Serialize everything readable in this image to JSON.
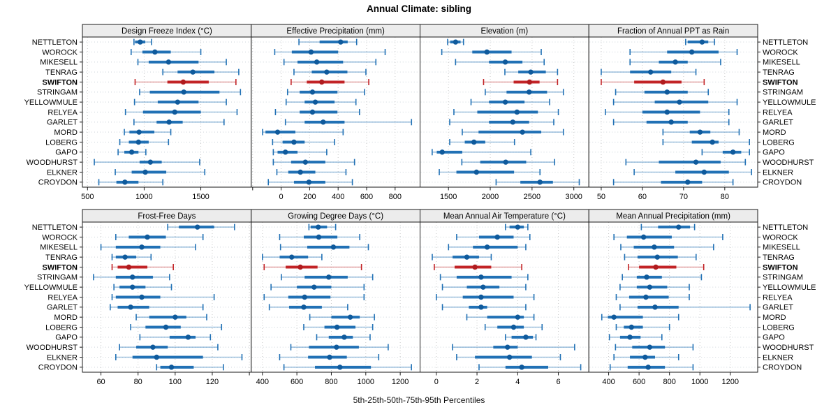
{
  "title": "Annual Climate: sibling",
  "footer": "5th-25th-50th-75th-95th Percentiles",
  "highlight_station": "SWIFTON",
  "stations": [
    "NETTLETON",
    "WOROCK",
    "MIKESELL",
    "TENRAG",
    "SWIFTON",
    "STRINGAM",
    "YELLOWMULE",
    "RELYEA",
    "GARLET",
    "MORD",
    "LOBERG",
    "GAPO",
    "WOODHURST",
    "ELKNER",
    "CROYDON"
  ],
  "colors": {
    "blue": "#2171b5",
    "blue_dot": "#0f5a9c",
    "red": "#c22326",
    "red_dot": "#b01b1e",
    "grid": "#c9c9c9",
    "row_grid": "#ccd4da",
    "strip_bg": "#ececec",
    "border": "#1a1a1a",
    "tick_text": "#1a1a1a"
  },
  "chart_data": [
    {
      "type": "dotplot",
      "title": "Design Freeze Index (°C)",
      "ticks": [
        500,
        1000,
        1500
      ],
      "extra_ticks": [],
      "xlim": [
        455,
        1945
      ],
      "percentiles": [
        5,
        25,
        50,
        75,
        95
      ],
      "values": [
        [
          910,
          920,
          965,
          1010,
          1065
        ],
        [
          885,
          985,
          1095,
          1235,
          1500
        ],
        [
          945,
          1040,
          1215,
          1480,
          1725
        ],
        [
          1165,
          1295,
          1430,
          1620,
          1835
        ],
        [
          920,
          1205,
          1345,
          1570,
          1810
        ],
        [
          960,
          1050,
          1350,
          1665,
          1850
        ],
        [
          915,
          1120,
          1295,
          1480,
          1725
        ],
        [
          835,
          990,
          1270,
          1500,
          1820
        ],
        [
          910,
          1110,
          1220,
          1340,
          1705
        ],
        [
          825,
          870,
          955,
          1090,
          1235
        ],
        [
          785,
          865,
          950,
          1040,
          1215
        ],
        [
          770,
          825,
          890,
          950,
          1015
        ],
        [
          560,
          960,
          1055,
          1155,
          1490
        ],
        [
          745,
          890,
          1010,
          1195,
          1535
        ],
        [
          600,
          755,
          830,
          950,
          1165
        ]
      ]
    },
    {
      "type": "dotplot",
      "title": "Effective Precipitation (mm)",
      "ticks": [
        0,
        200,
        400,
        600,
        800
      ],
      "extra_ticks": [
        -200
      ],
      "xlim": [
        -210,
        975
      ],
      "percentiles": [
        5,
        25,
        50,
        75,
        95
      ],
      "values": [
        [
          125,
          270,
          418,
          467,
          530
        ],
        [
          -45,
          75,
          210,
          400,
          730
        ],
        [
          20,
          115,
          250,
          435,
          665
        ],
        [
          90,
          215,
          320,
          465,
          595
        ],
        [
          70,
          180,
          285,
          445,
          615
        ],
        [
          45,
          130,
          220,
          395,
          585
        ],
        [
          35,
          165,
          240,
          375,
          525
        ],
        [
          -40,
          130,
          220,
          395,
          550
        ],
        [
          30,
          165,
          295,
          445,
          915
        ],
        [
          -130,
          -110,
          -25,
          100,
          435
        ],
        [
          -60,
          10,
          90,
          165,
          375
        ],
        [
          -55,
          -25,
          30,
          115,
          320
        ],
        [
          -55,
          70,
          170,
          310,
          515
        ],
        [
          -30,
          50,
          135,
          240,
          455
        ],
        [
          -90,
          90,
          195,
          310,
          500
        ]
      ]
    },
    {
      "type": "dotplot",
      "title": "Elevation (m)",
      "ticks": [
        1500,
        2000,
        2500,
        3000
      ],
      "extra_ticks": [],
      "xlim": [
        1160,
        3180
      ],
      "percentiles": [
        5,
        25,
        50,
        75,
        95
      ],
      "values": [
        [
          1490,
          1520,
          1585,
          1645,
          1680
        ],
        [
          1420,
          1785,
          1960,
          2255,
          2610
        ],
        [
          1585,
          1985,
          2180,
          2385,
          2645
        ],
        [
          2175,
          2335,
          2485,
          2665,
          2805
        ],
        [
          1920,
          2280,
          2470,
          2590,
          2805
        ],
        [
          1940,
          2195,
          2465,
          2680,
          2875
        ],
        [
          1770,
          1985,
          2180,
          2410,
          2710
        ],
        [
          1565,
          1845,
          2320,
          2570,
          2815
        ],
        [
          1515,
          1985,
          2270,
          2465,
          2760
        ],
        [
          1665,
          1860,
          2385,
          2610,
          2875
        ],
        [
          1515,
          1695,
          1805,
          1940,
          2290
        ],
        [
          1305,
          1360,
          1425,
          1665,
          2485
        ],
        [
          1660,
          1880,
          2185,
          2430,
          2770
        ],
        [
          1390,
          1595,
          1835,
          2285,
          2595
        ],
        [
          2070,
          2360,
          2595,
          2750,
          3065
        ]
      ]
    },
    {
      "type": "dotplot",
      "title": "Fraction of Annual PPT as Rain",
      "ticks": [
        50,
        60,
        70,
        80
      ],
      "extra_ticks": [],
      "xlim": [
        47,
        88
      ],
      "percentiles": [
        5,
        25,
        50,
        75,
        95
      ],
      "values": [
        [
          70.5,
          71,
          74.5,
          76,
          77.5
        ],
        [
          57,
          66,
          72,
          78.5,
          83
        ],
        [
          57,
          64,
          68,
          71,
          79
        ],
        [
          50,
          57,
          62,
          67,
          73
        ],
        [
          50,
          58,
          65,
          69.5,
          75
        ],
        [
          53.5,
          60.5,
          66,
          71,
          76
        ],
        [
          53,
          63,
          69,
          76,
          83
        ],
        [
          51,
          60,
          66,
          74,
          81
        ],
        [
          53,
          61,
          67,
          71,
          81
        ],
        [
          65,
          71.5,
          74,
          76.5,
          83.5
        ],
        [
          65,
          72,
          77,
          78.5,
          86
        ],
        [
          74.5,
          79.5,
          82,
          84,
          86
        ],
        [
          56,
          64,
          73,
          79,
          85
        ],
        [
          58,
          68,
          75,
          81,
          86.5
        ],
        [
          53,
          64.5,
          71,
          74.5,
          82
        ]
      ]
    },
    {
      "type": "dotplot",
      "title": "Frost-Free Days",
      "ticks": [
        60,
        80,
        100,
        120
      ],
      "extra_ticks": [
        140
      ],
      "xlim": [
        50,
        141
      ],
      "percentiles": [
        5,
        25,
        50,
        75,
        95
      ],
      "values": [
        [
          96,
          102,
          112,
          121,
          132
        ],
        [
          68,
          75,
          85,
          95,
          115
        ],
        [
          60,
          68,
          82,
          92,
          111
        ],
        [
          66,
          68,
          73,
          79,
          87
        ],
        [
          66,
          69,
          75,
          85,
          99
        ],
        [
          56,
          68,
          77,
          88,
          97
        ],
        [
          67,
          70,
          77,
          84,
          98
        ],
        [
          66,
          68,
          82,
          92,
          121
        ],
        [
          65,
          69,
          76,
          86,
          115
        ],
        [
          79,
          86,
          100,
          106,
          117
        ],
        [
          76,
          84,
          95,
          103,
          125
        ],
        [
          81,
          97,
          107,
          111,
          119
        ],
        [
          70,
          79,
          88,
          96,
          123
        ],
        [
          68,
          77,
          90,
          115,
          136
        ],
        [
          90,
          92,
          98,
          110,
          126
        ]
      ]
    },
    {
      "type": "dotplot",
      "title": "Growing Degree Days (°C)",
      "ticks": [
        400,
        600,
        800,
        1000,
        1200
      ],
      "extra_ticks": [],
      "xlim": [
        335,
        1315
      ],
      "percentiles": [
        5,
        25,
        50,
        75,
        95
      ],
      "values": [
        [
          670,
          680,
          724,
          775,
          825
        ],
        [
          500,
          640,
          727,
          835,
          965
        ],
        [
          505,
          660,
          812,
          905,
          1015
        ],
        [
          400,
          500,
          570,
          665,
          745
        ],
        [
          410,
          535,
          620,
          720,
          975
        ],
        [
          510,
          645,
          785,
          895,
          1040
        ],
        [
          450,
          600,
          700,
          800,
          990
        ],
        [
          410,
          550,
          645,
          795,
          990
        ],
        [
          440,
          555,
          640,
          745,
          895
        ],
        [
          675,
          800,
          910,
          965,
          1050
        ],
        [
          640,
          760,
          833,
          940,
          1040
        ],
        [
          715,
          785,
          875,
          925,
          1025
        ],
        [
          565,
          670,
          830,
          960,
          1130
        ],
        [
          500,
          665,
          790,
          890,
          1075
        ],
        [
          525,
          705,
          850,
          1030,
          1265
        ]
      ]
    },
    {
      "type": "dotplot",
      "title": "Mean Annual Air Temperature (°C)",
      "ticks": [
        0,
        2,
        4,
        6
      ],
      "extra_ticks": [],
      "xlim": [
        -0.8,
        7.5
      ],
      "percentiles": [
        5,
        25,
        50,
        75,
        95
      ],
      "values": [
        [
          3.4,
          3.6,
          4.0,
          4.3,
          4.5
        ],
        [
          1.0,
          2.1,
          3.0,
          3.8,
          4.6
        ],
        [
          0.6,
          1.8,
          2.5,
          4.0,
          4.4
        ],
        [
          -0.2,
          0.8,
          1.5,
          2.1,
          2.7
        ],
        [
          -0.1,
          0.9,
          1.9,
          2.7,
          4.2
        ],
        [
          0.2,
          1.0,
          2.2,
          3.7,
          4.5
        ],
        [
          0.3,
          1.5,
          2.3,
          3.1,
          4.4
        ],
        [
          0.0,
          1.3,
          2.2,
          3.8,
          4.8
        ],
        [
          0.3,
          1.6,
          2.2,
          2.5,
          4.4
        ],
        [
          1.5,
          2.5,
          4.0,
          4.3,
          4.8
        ],
        [
          2.4,
          3.0,
          3.8,
          4.3,
          5.2
        ],
        [
          3.4,
          3.7,
          4.4,
          4.75,
          4.9
        ],
        [
          0.8,
          2.8,
          3.5,
          4.0,
          6.8
        ],
        [
          1.0,
          1.9,
          3.6,
          4.7,
          6.1
        ],
        [
          2.1,
          3.4,
          4.2,
          5.5,
          7.1
        ]
      ]
    },
    {
      "type": "dotplot",
      "title": "Mean Annual Precipitation (mm)",
      "ticks": [
        400,
        600,
        800,
        1000,
        1200
      ],
      "extra_ticks": [],
      "xlim": [
        270,
        1380
      ],
      "percentiles": [
        5,
        25,
        50,
        75,
        95
      ],
      "values": [
        [
          615,
          725,
          860,
          935,
          965
        ],
        [
          435,
          520,
          630,
          815,
          1150
        ],
        [
          480,
          565,
          700,
          830,
          1090
        ],
        [
          505,
          590,
          720,
          855,
          975
        ],
        [
          530,
          600,
          710,
          845,
          1025
        ],
        [
          490,
          585,
          650,
          750,
          1010
        ],
        [
          475,
          585,
          670,
          785,
          930
        ],
        [
          450,
          535,
          645,
          795,
          930
        ],
        [
          475,
          590,
          705,
          860,
          1330
        ],
        [
          355,
          395,
          435,
          625,
          860
        ],
        [
          450,
          500,
          550,
          625,
          800
        ],
        [
          405,
          475,
          540,
          610,
          750
        ],
        [
          445,
          555,
          670,
          770,
          955
        ],
        [
          435,
          540,
          640,
          705,
          860
        ],
        [
          410,
          525,
          660,
          770,
          955
        ]
      ]
    }
  ]
}
